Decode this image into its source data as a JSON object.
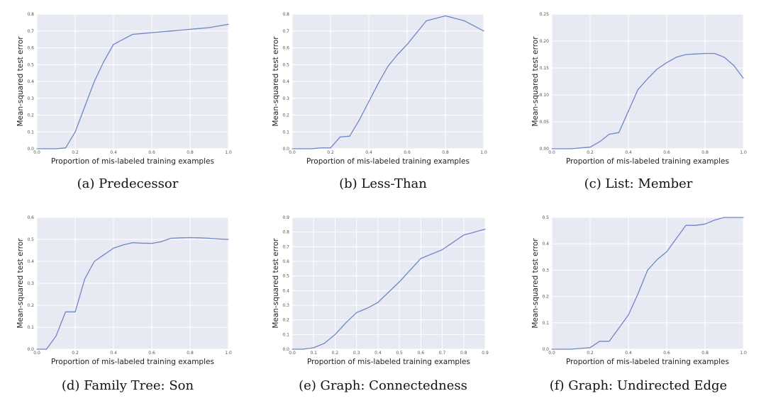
{
  "chart_data": [
    {
      "type": "line",
      "caption": "(a) Predecessor",
      "xlabel": "Proportion of mis-labeled training examples",
      "ylabel": "Mean-squared test error",
      "xlim": [
        0.0,
        1.0
      ],
      "ylim": [
        0.0,
        0.8
      ],
      "xticks": [
        0.0,
        0.2,
        0.4,
        0.6,
        0.8,
        1.0
      ],
      "xtick_labels": [
        "0.0",
        "0.2",
        "0.4",
        "0.6",
        "0.8",
        "1.0"
      ],
      "yticks": [
        0.0,
        0.1,
        0.2,
        0.3,
        0.4,
        0.5,
        0.6,
        0.7,
        0.8
      ],
      "ytick_labels": [
        "0.0",
        "0.1",
        "0.2",
        "0.3",
        "0.4",
        "0.5",
        "0.6",
        "0.7",
        "0.8"
      ],
      "x": [
        0.0,
        0.05,
        0.1,
        0.15,
        0.2,
        0.25,
        0.3,
        0.35,
        0.4,
        0.45,
        0.5,
        0.55,
        0.6,
        0.65,
        0.7,
        0.75,
        0.8,
        0.85,
        0.9,
        0.95,
        1.0
      ],
      "y": [
        0.0,
        0.0,
        0.0,
        0.005,
        0.1,
        0.25,
        0.4,
        0.52,
        0.62,
        0.65,
        0.68,
        0.685,
        0.69,
        0.695,
        0.7,
        0.705,
        0.71,
        0.715,
        0.72,
        0.73,
        0.74
      ]
    },
    {
      "type": "line",
      "caption": "(b) Less-Than",
      "xlabel": "Proportion of mis-labeled training examples",
      "ylabel": "Mean-squared test error",
      "xlim": [
        0.0,
        1.0
      ],
      "ylim": [
        0.0,
        0.8
      ],
      "xticks": [
        0.0,
        0.2,
        0.4,
        0.6,
        0.8,
        1.0
      ],
      "xtick_labels": [
        "0.0",
        "0.2",
        "0.4",
        "0.6",
        "0.8",
        "1.0"
      ],
      "yticks": [
        0.0,
        0.1,
        0.2,
        0.3,
        0.4,
        0.5,
        0.6,
        0.7,
        0.8
      ],
      "ytick_labels": [
        "0.0",
        "0.1",
        "0.2",
        "0.3",
        "0.4",
        "0.5",
        "0.6",
        "0.7",
        "0.8"
      ],
      "x": [
        0.0,
        0.05,
        0.1,
        0.15,
        0.2,
        0.25,
        0.3,
        0.35,
        0.4,
        0.45,
        0.5,
        0.55,
        0.6,
        0.65,
        0.7,
        0.75,
        0.8,
        0.85,
        0.9,
        0.95,
        1.0
      ],
      "y": [
        0.0,
        0.0,
        0.0,
        0.005,
        0.005,
        0.07,
        0.075,
        0.17,
        0.28,
        0.39,
        0.49,
        0.56,
        0.62,
        0.69,
        0.76,
        0.775,
        0.79,
        0.775,
        0.76,
        0.73,
        0.7
      ]
    },
    {
      "type": "line",
      "caption": "(c) List: Member",
      "xlabel": "Proportion of mis-labeled training examples",
      "ylabel": "Mean-squared test error",
      "xlim": [
        0.0,
        1.0
      ],
      "ylim": [
        0.0,
        0.25
      ],
      "xticks": [
        0.0,
        0.2,
        0.4,
        0.6,
        0.8,
        1.0
      ],
      "xtick_labels": [
        "0.0",
        "0.2",
        "0.4",
        "0.6",
        "0.8",
        "1.0"
      ],
      "yticks": [
        0.0,
        0.05,
        0.1,
        0.15,
        0.2,
        0.25
      ],
      "ytick_labels": [
        "0.00",
        "0.05",
        "0.10",
        "0.15",
        "0.20",
        "0.25"
      ],
      "x": [
        0.0,
        0.1,
        0.2,
        0.25,
        0.3,
        0.35,
        0.4,
        0.45,
        0.5,
        0.55,
        0.6,
        0.65,
        0.7,
        0.75,
        0.8,
        0.85,
        0.9,
        0.95,
        1.0
      ],
      "y": [
        0.0,
        0.0,
        0.003,
        0.013,
        0.027,
        0.03,
        0.07,
        0.11,
        0.13,
        0.148,
        0.16,
        0.17,
        0.175,
        0.176,
        0.177,
        0.177,
        0.17,
        0.155,
        0.131
      ]
    },
    {
      "type": "line",
      "caption": "(d) Family Tree: Son",
      "xlabel": "Proportion of mis-labeled training examples",
      "ylabel": "Mean-squared test error",
      "xlim": [
        0.0,
        1.0
      ],
      "ylim": [
        0.0,
        0.6
      ],
      "xticks": [
        0.0,
        0.2,
        0.4,
        0.6,
        0.8,
        1.0
      ],
      "xtick_labels": [
        "0.0",
        "0.2",
        "0.4",
        "0.6",
        "0.8",
        "1.0"
      ],
      "yticks": [
        0.0,
        0.1,
        0.2,
        0.3,
        0.4,
        0.5,
        0.6
      ],
      "ytick_labels": [
        "0.0",
        "0.1",
        "0.2",
        "0.3",
        "0.4",
        "0.5",
        "0.6"
      ],
      "x": [
        0.0,
        0.05,
        0.1,
        0.15,
        0.2,
        0.25,
        0.3,
        0.35,
        0.4,
        0.45,
        0.5,
        0.55,
        0.6,
        0.65,
        0.7,
        0.75,
        0.8,
        0.85,
        0.9,
        0.95,
        1.0
      ],
      "y": [
        0.0,
        0.0,
        0.06,
        0.17,
        0.17,
        0.32,
        0.4,
        0.43,
        0.46,
        0.475,
        0.485,
        0.483,
        0.482,
        0.49,
        0.505,
        0.507,
        0.508,
        0.507,
        0.505,
        0.502,
        0.5
      ]
    },
    {
      "type": "line",
      "caption": "(e) Graph: Connectedness",
      "xlabel": "Proportion of mis-labeled training examples",
      "ylabel": "Mean-squared test error",
      "xlim": [
        0.0,
        0.9
      ],
      "ylim": [
        0.0,
        0.9
      ],
      "xticks": [
        0.0,
        0.1,
        0.2,
        0.3,
        0.4,
        0.5,
        0.6,
        0.7,
        0.8,
        0.9
      ],
      "xtick_labels": [
        "0.0",
        "0.1",
        "0.2",
        "0.3",
        "0.4",
        "0.5",
        "0.6",
        "0.7",
        "0.8",
        "0.9"
      ],
      "yticks": [
        0.0,
        0.1,
        0.2,
        0.3,
        0.4,
        0.5,
        0.6,
        0.7,
        0.8,
        0.9
      ],
      "ytick_labels": [
        "0.0",
        "0.1",
        "0.2",
        "0.3",
        "0.4",
        "0.5",
        "0.6",
        "0.7",
        "0.8",
        "0.9"
      ],
      "x": [
        0.0,
        0.05,
        0.1,
        0.15,
        0.2,
        0.25,
        0.3,
        0.35,
        0.4,
        0.45,
        0.5,
        0.55,
        0.6,
        0.65,
        0.7,
        0.75,
        0.8,
        0.85,
        0.9
      ],
      "y": [
        0.0,
        0.0,
        0.01,
        0.04,
        0.1,
        0.18,
        0.25,
        0.28,
        0.32,
        0.39,
        0.46,
        0.54,
        0.62,
        0.65,
        0.68,
        0.73,
        0.78,
        0.8,
        0.82
      ]
    },
    {
      "type": "line",
      "caption": "(f) Graph: Undirected Edge",
      "xlabel": "Proportion of mis-labeled training examples",
      "ylabel": "Mean-squared test error",
      "xlim": [
        0.0,
        1.0
      ],
      "ylim": [
        0.0,
        0.5
      ],
      "xticks": [
        0.0,
        0.2,
        0.4,
        0.6,
        0.8,
        1.0
      ],
      "xtick_labels": [
        "0.0",
        "0.2",
        "0.4",
        "0.6",
        "0.8",
        "1.0"
      ],
      "yticks": [
        0.0,
        0.1,
        0.2,
        0.3,
        0.4,
        0.5
      ],
      "ytick_labels": [
        "0.0",
        "0.1",
        "0.2",
        "0.3",
        "0.4",
        "0.5"
      ],
      "x": [
        0.0,
        0.05,
        0.1,
        0.15,
        0.2,
        0.25,
        0.3,
        0.35,
        0.4,
        0.45,
        0.5,
        0.55,
        0.6,
        0.65,
        0.7,
        0.75,
        0.8,
        0.85,
        0.9,
        0.95,
        1.0
      ],
      "y": [
        0.0,
        0.0,
        0.0,
        0.003,
        0.006,
        0.03,
        0.03,
        0.08,
        0.13,
        0.21,
        0.3,
        0.34,
        0.37,
        0.42,
        0.47,
        0.47,
        0.475,
        0.49,
        0.5,
        0.5,
        0.5
      ]
    }
  ]
}
